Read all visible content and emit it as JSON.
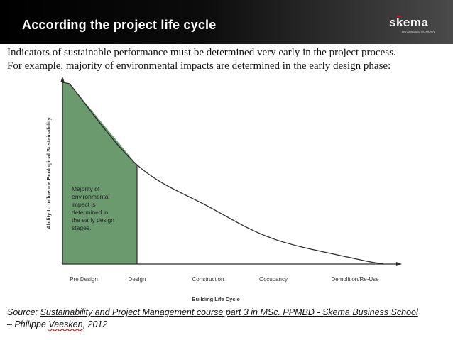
{
  "header": {
    "title": "According the project life cycle",
    "logo_text": "skema",
    "logo_sub": "BUSINESS SCHOOL"
  },
  "intro": {
    "line1": "Indicators of sustainable performance must be determined very early in the project process.",
    "line2": "For example, majority of environmental impacts are determined in the early design phase:"
  },
  "chart_data": {
    "type": "area",
    "title": "",
    "xlabel": "Building Life Cycle",
    "ylabel": "Ability to influence Ecological Sustainability",
    "categories": [
      "Pre Design",
      "Design",
      "Construction",
      "Occupancy",
      "Demolition/Re-Use"
    ],
    "x": [
      0,
      1,
      2,
      3,
      4,
      4.3
    ],
    "y": [
      100,
      55,
      32,
      14,
      3,
      0
    ],
    "ylim": [
      0,
      100
    ],
    "shaded_range": [
      "Pre Design",
      "Design"
    ],
    "shaded_color": "#6a9a6e",
    "annotation": [
      "Majority of",
      "environmental",
      "impact is",
      "determined in",
      "the early design",
      "stages."
    ]
  },
  "source": {
    "prefix": "Source: ",
    "link_text": "Sustainability and Project Management course part 3 in MSc. PPMBD - Skema Business School",
    "dash": "– Philippe ",
    "author_last": "Vaesken",
    "year": ", 2012"
  },
  "colors": {
    "header_bg": "#000000",
    "header_text": "#ffffff",
    "logo_accent": "#e3051b",
    "area_fill": "#6a9a6e"
  }
}
